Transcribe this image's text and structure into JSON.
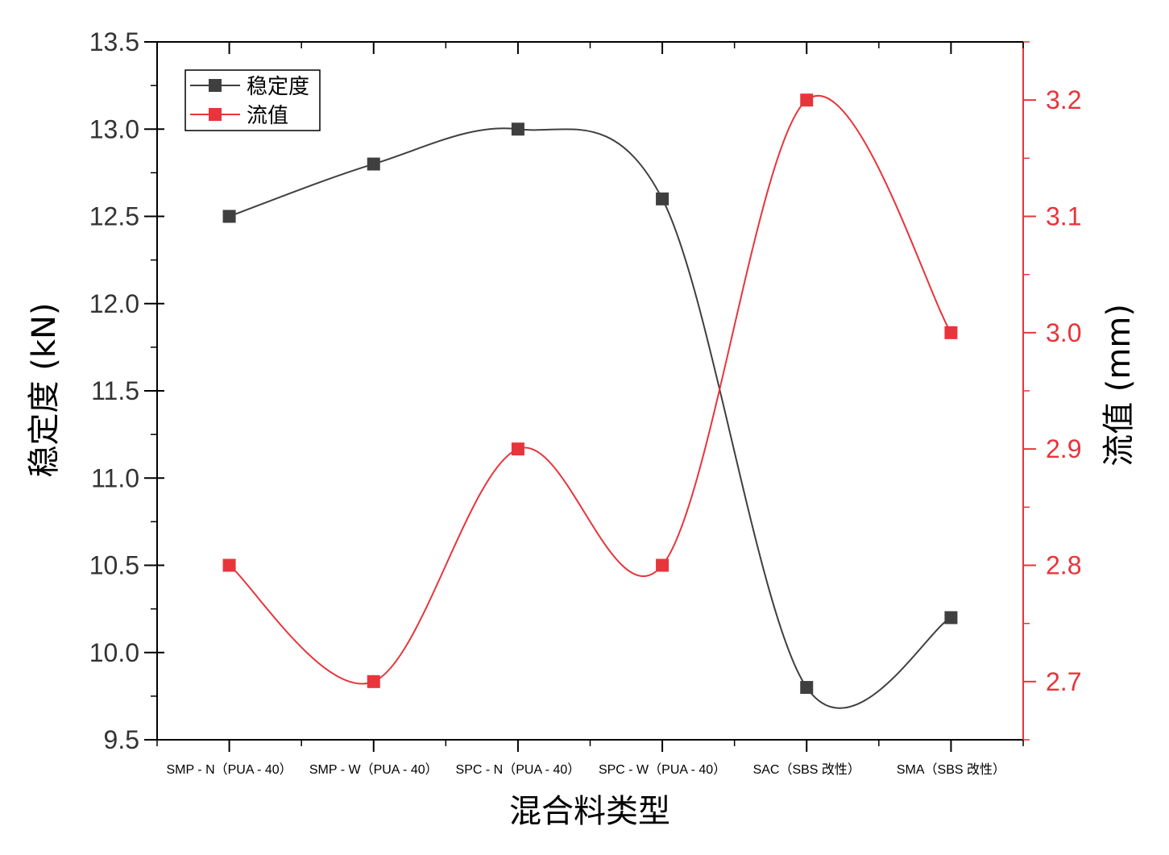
{
  "chart_data": {
    "type": "line",
    "categories": [
      "SMP - N（PUA - 40）",
      "SMP - W（PUA - 40）",
      "SPC - N（PUA - 40）",
      "SPC - W（PUA - 40）",
      "SAC（SBS 改性）",
      "SMA（SBS 改性）"
    ],
    "series": [
      {
        "name": "稳定度",
        "axis": "left",
        "color": "#3f3f3f",
        "values": [
          12.5,
          12.8,
          13.0,
          12.6,
          9.8,
          10.2
        ]
      },
      {
        "name": "流值",
        "axis": "right",
        "color": "#e8343b",
        "values": [
          2.8,
          2.7,
          2.9,
          2.8,
          3.2,
          3.0
        ]
      }
    ],
    "xlabel": "混合料类型",
    "ylabel": "稳定度 (kN)",
    "y2label": "流值 (mm)",
    "ylim": [
      9.5,
      13.5
    ],
    "y2lim": [
      2.65,
      3.25
    ],
    "yticks": [
      "9.5",
      "10.0",
      "10.5",
      "11.0",
      "11.5",
      "12.0",
      "12.5",
      "13.0",
      "13.5"
    ],
    "y2ticks": [
      "2.7",
      "2.8",
      "2.9",
      "3.0",
      "3.1",
      "3.2"
    ],
    "legend_position": "top-left",
    "grid": false,
    "smooth": true
  }
}
